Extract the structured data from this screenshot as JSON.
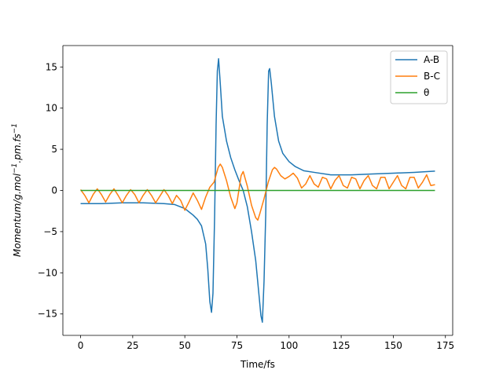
{
  "chart_data": {
    "type": "line",
    "xlabel": "Time/fs",
    "ylabel_parts": {
      "m1": "Momentum/g.mol",
      "s1": "−1",
      "m2": ".pm.fs",
      "s2": "−1"
    },
    "xlim": [
      -8.5,
      178.5
    ],
    "ylim": [
      -17.6,
      17.6
    ],
    "xticks": [
      0,
      25,
      50,
      75,
      100,
      125,
      150,
      175
    ],
    "yticks": [
      -15,
      -10,
      -5,
      0,
      5,
      10,
      15
    ],
    "legend_position": "top-right",
    "grid": false,
    "series": [
      {
        "name": "A-B",
        "color": "#1f77b4",
        "points": [
          [
            0,
            -1.6
          ],
          [
            10,
            -1.6
          ],
          [
            20,
            -1.5
          ],
          [
            30,
            -1.5
          ],
          [
            40,
            -1.6
          ],
          [
            45,
            -1.7
          ],
          [
            48,
            -2.0
          ],
          [
            50,
            -2.2
          ],
          [
            52,
            -2.6
          ],
          [
            54,
            -3.0
          ],
          [
            56,
            -3.5
          ],
          [
            58,
            -4.3
          ],
          [
            60,
            -6.5
          ],
          [
            61,
            -9.5
          ],
          [
            62,
            -13.5
          ],
          [
            62.8,
            -14.8
          ],
          [
            63.5,
            -12.5
          ],
          [
            64.3,
            -3.0
          ],
          [
            65,
            8.0
          ],
          [
            65.6,
            14.5
          ],
          [
            66.2,
            16.0
          ],
          [
            67,
            13.0
          ],
          [
            68,
            9.0
          ],
          [
            69,
            7.5
          ],
          [
            70,
            6.0
          ],
          [
            72,
            4.0
          ],
          [
            74,
            2.5
          ],
          [
            76,
            1.2
          ],
          [
            78,
            0.0
          ],
          [
            80,
            -2.0
          ],
          [
            82,
            -5.0
          ],
          [
            84,
            -8.5
          ],
          [
            85.5,
            -12.5
          ],
          [
            86.5,
            -15.2
          ],
          [
            87.2,
            -16.0
          ],
          [
            88,
            -11.0
          ],
          [
            88.8,
            -3.0
          ],
          [
            89.5,
            8.0
          ],
          [
            90.2,
            14.5
          ],
          [
            90.7,
            14.8
          ],
          [
            91.5,
            13.0
          ],
          [
            93,
            9.0
          ],
          [
            95,
            6.0
          ],
          [
            97,
            4.5
          ],
          [
            100,
            3.5
          ],
          [
            103,
            2.9
          ],
          [
            107,
            2.4
          ],
          [
            112,
            2.2
          ],
          [
            120,
            1.9
          ],
          [
            130,
            1.9
          ],
          [
            140,
            2.0
          ],
          [
            150,
            2.1
          ],
          [
            160,
            2.2
          ],
          [
            170,
            2.35
          ]
        ]
      },
      {
        "name": "B-C",
        "color": "#ff7f0e",
        "points": [
          [
            0,
            0.1
          ],
          [
            2,
            -0.6
          ],
          [
            4,
            -1.5
          ],
          [
            6,
            -0.5
          ],
          [
            8,
            0.2
          ],
          [
            10,
            -0.5
          ],
          [
            12,
            -1.4
          ],
          [
            14,
            -0.5
          ],
          [
            16,
            0.2
          ],
          [
            18,
            -0.6
          ],
          [
            20,
            -1.5
          ],
          [
            22,
            -0.6
          ],
          [
            24,
            0.1
          ],
          [
            26,
            -0.5
          ],
          [
            28,
            -1.5
          ],
          [
            30,
            -0.6
          ],
          [
            32,
            0.1
          ],
          [
            34,
            -0.6
          ],
          [
            36,
            -1.5
          ],
          [
            38,
            -0.7
          ],
          [
            40,
            0.1
          ],
          [
            42,
            -0.6
          ],
          [
            44,
            -1.6
          ],
          [
            46,
            -0.6
          ],
          [
            48,
            -1.2
          ],
          [
            50,
            -2.4
          ],
          [
            52,
            -1.4
          ],
          [
            54,
            -0.3
          ],
          [
            56,
            -1.2
          ],
          [
            58,
            -2.3
          ],
          [
            60,
            -0.8
          ],
          [
            62,
            0.4
          ],
          [
            64,
            1.0
          ],
          [
            66,
            2.8
          ],
          [
            67,
            3.2
          ],
          [
            68,
            2.8
          ],
          [
            70,
            1.2
          ],
          [
            72,
            -0.8
          ],
          [
            74,
            -2.2
          ],
          [
            75,
            -1.5
          ],
          [
            77,
            1.8
          ],
          [
            78,
            2.3
          ],
          [
            80,
            0.5
          ],
          [
            82,
            -1.8
          ],
          [
            84,
            -3.3
          ],
          [
            85,
            -3.6
          ],
          [
            86,
            -2.8
          ],
          [
            88,
            -1.0
          ],
          [
            90,
            1.0
          ],
          [
            92,
            2.5
          ],
          [
            93,
            2.8
          ],
          [
            94,
            2.6
          ],
          [
            96,
            1.8
          ],
          [
            98,
            1.4
          ],
          [
            100,
            1.7
          ],
          [
            102,
            2.1
          ],
          [
            104,
            1.5
          ],
          [
            106,
            0.3
          ],
          [
            108,
            0.8
          ],
          [
            110,
            1.8
          ],
          [
            112,
            0.8
          ],
          [
            114,
            0.4
          ],
          [
            116,
            1.6
          ],
          [
            118,
            1.4
          ],
          [
            120,
            0.2
          ],
          [
            122,
            1.2
          ],
          [
            124,
            1.8
          ],
          [
            126,
            0.6
          ],
          [
            128,
            0.3
          ],
          [
            130,
            1.6
          ],
          [
            132,
            1.4
          ],
          [
            134,
            0.2
          ],
          [
            136,
            1.2
          ],
          [
            138,
            1.8
          ],
          [
            140,
            0.6
          ],
          [
            142,
            0.2
          ],
          [
            144,
            1.6
          ],
          [
            146,
            1.6
          ],
          [
            148,
            0.2
          ],
          [
            150,
            1.0
          ],
          [
            152,
            1.8
          ],
          [
            154,
            0.6
          ],
          [
            156,
            0.2
          ],
          [
            158,
            1.6
          ],
          [
            160,
            1.6
          ],
          [
            162,
            0.3
          ],
          [
            164,
            1.0
          ],
          [
            166,
            1.9
          ],
          [
            168,
            0.6
          ],
          [
            170,
            0.7
          ]
        ]
      },
      {
        "name": "θ",
        "color": "#2ca02c",
        "points": [
          [
            0,
            0
          ],
          [
            170,
            0
          ]
        ]
      }
    ]
  }
}
